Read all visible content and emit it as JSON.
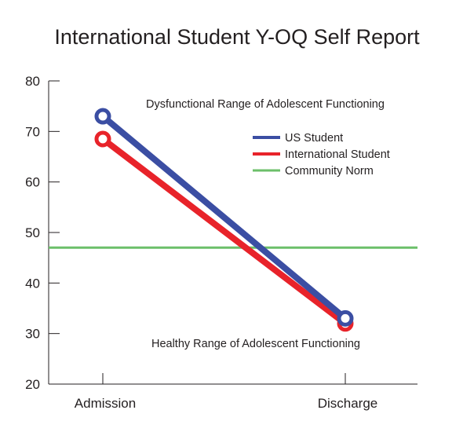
{
  "chart_data": {
    "type": "line",
    "title": "International Student Y-OQ Self Report",
    "categories": [
      "Admission",
      "Discharge"
    ],
    "ylim": [
      20,
      80
    ],
    "yticks": [
      20,
      30,
      40,
      50,
      60,
      70,
      80
    ],
    "grid": false,
    "legend_position": "top-right",
    "series": [
      {
        "name": "US Student",
        "values": [
          73,
          33
        ],
        "color": "#3b4ea3"
      },
      {
        "name": "International Student",
        "values": [
          68.5,
          32
        ],
        "color": "#e8232a"
      }
    ],
    "reference_lines": [
      {
        "name": "Community Norm",
        "value": 47,
        "color": "#6cbf6a"
      }
    ],
    "annotations": {
      "upper": "Dysfunctional Range of Adolescent Functioning",
      "lower": "Healthy Range of Adolescent Functioning"
    }
  }
}
